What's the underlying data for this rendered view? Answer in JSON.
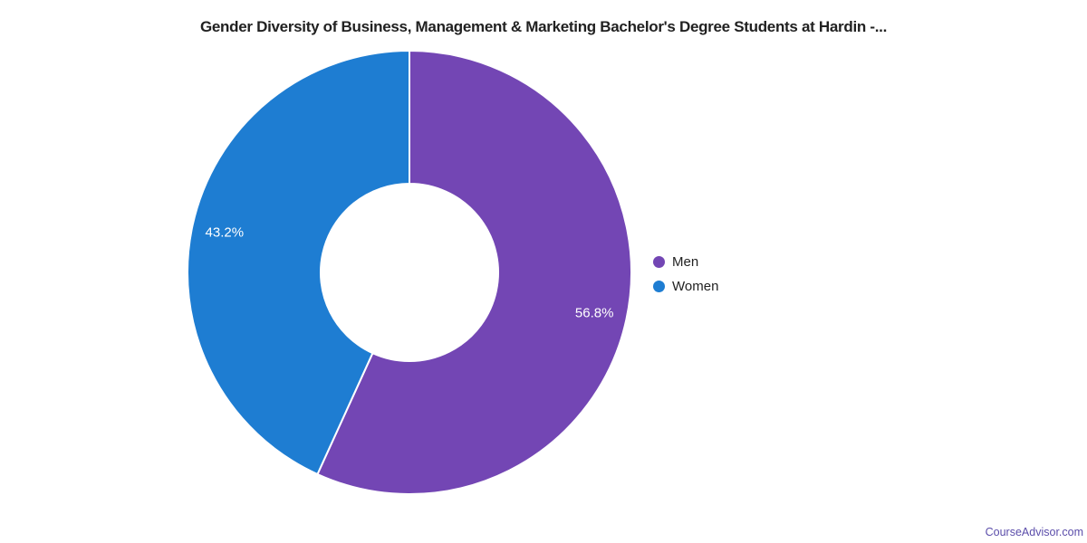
{
  "chart_data": {
    "type": "pie",
    "donut": true,
    "title": "Gender Diversity of Business, Management & Marketing Bachelor's Degree Students at Hardin -...",
    "slices": [
      {
        "label": "Men",
        "value": 56.8,
        "display": "56.8%",
        "color": "#7346b4"
      },
      {
        "label": "Women",
        "value": 43.2,
        "display": "43.2%",
        "color": "#1e7dd2"
      }
    ],
    "start_angle_deg": 0,
    "direction": "clockwise",
    "legend_position": "right",
    "slice_border_color": "#ffffff"
  },
  "legend": {
    "items": [
      {
        "label": "Men"
      },
      {
        "label": "Women"
      }
    ]
  },
  "watermark": {
    "label": "CourseAdvisor.com"
  },
  "colors": {
    "men": "#7346b4",
    "women": "#1e7dd2",
    "title_text": "#212121",
    "slice_label_text": "#ffffff",
    "watermark_text": "#5b4daa"
  }
}
